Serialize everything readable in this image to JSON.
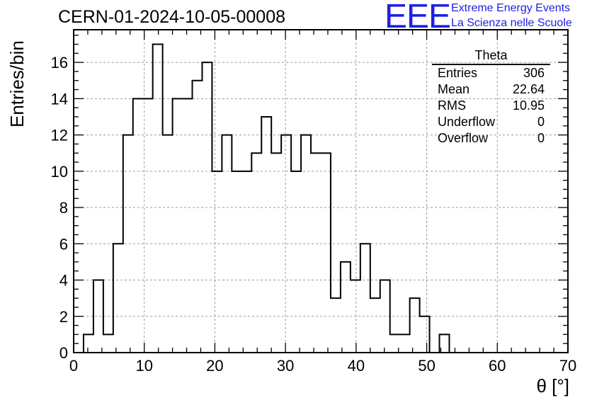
{
  "chart_data": {
    "type": "histogram",
    "title": "CERN-01-2024-10-05-00008",
    "xlabel": "θ [°]",
    "ylabel": "Entries/bin",
    "xlim": [
      0,
      70
    ],
    "ylim": [
      0,
      17.8
    ],
    "bin_width": 1.4,
    "xticks": [
      0,
      10,
      20,
      30,
      40,
      50,
      60,
      70
    ],
    "yticks": [
      0,
      2,
      4,
      6,
      8,
      10,
      12,
      14,
      16
    ],
    "grid": true,
    "counts": [
      0,
      1,
      4,
      1,
      6,
      12,
      14,
      14,
      17,
      12,
      14,
      14,
      15,
      16,
      10,
      12,
      10,
      10,
      11,
      13,
      11,
      12,
      10,
      12,
      11,
      11,
      3,
      5,
      4,
      6,
      3,
      4,
      1,
      1,
      3,
      2,
      0,
      1,
      0,
      0,
      0,
      0,
      0,
      0,
      0,
      0,
      0,
      0,
      0,
      0
    ],
    "stats": {
      "name": "Theta",
      "rows": [
        {
          "label": "Entries",
          "value": "306"
        },
        {
          "label": "Mean",
          "value": "22.64"
        },
        {
          "label": "RMS",
          "value": "10.95"
        },
        {
          "label": "Underflow",
          "value": "0"
        },
        {
          "label": "Overflow",
          "value": "0"
        }
      ]
    }
  },
  "logo": {
    "mark": "EEE",
    "line1": "Extreme Energy Events",
    "line2": "La Scienza nelle Scuole",
    "color": "#1f1fe6"
  }
}
